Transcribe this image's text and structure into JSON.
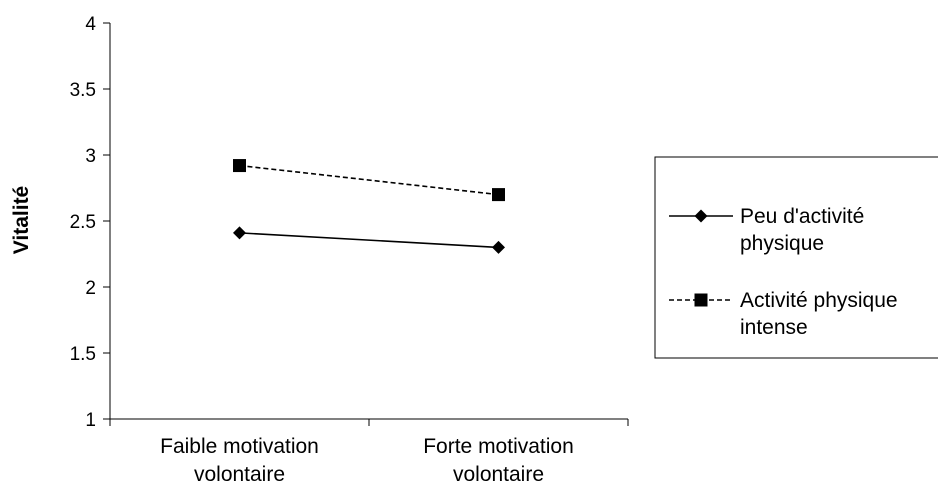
{
  "chart_data": {
    "type": "line",
    "ylabel": "Vitalité",
    "xlabel": "",
    "ylim": [
      1,
      4
    ],
    "ytick_step": 0.5,
    "ytick_labels": [
      "1",
      "1.5",
      "2",
      "2.5",
      "3",
      "3.5",
      "4"
    ],
    "categories": [
      [
        "Faible motivation",
        "volontaire"
      ],
      [
        "Forte motivation",
        "volontaire"
      ]
    ],
    "series": [
      {
        "name_lines": [
          "Peu d'activité",
          "physique"
        ],
        "values": [
          2.41,
          2.3
        ],
        "line_style": "solid",
        "marker": "diamond",
        "color": "#000000"
      },
      {
        "name_lines": [
          "Activité physique",
          "intense"
        ],
        "values": [
          2.92,
          2.7
        ],
        "line_style": "dashed",
        "marker": "square",
        "color": "#000000"
      }
    ],
    "legend_position": "right",
    "grid": false
  }
}
